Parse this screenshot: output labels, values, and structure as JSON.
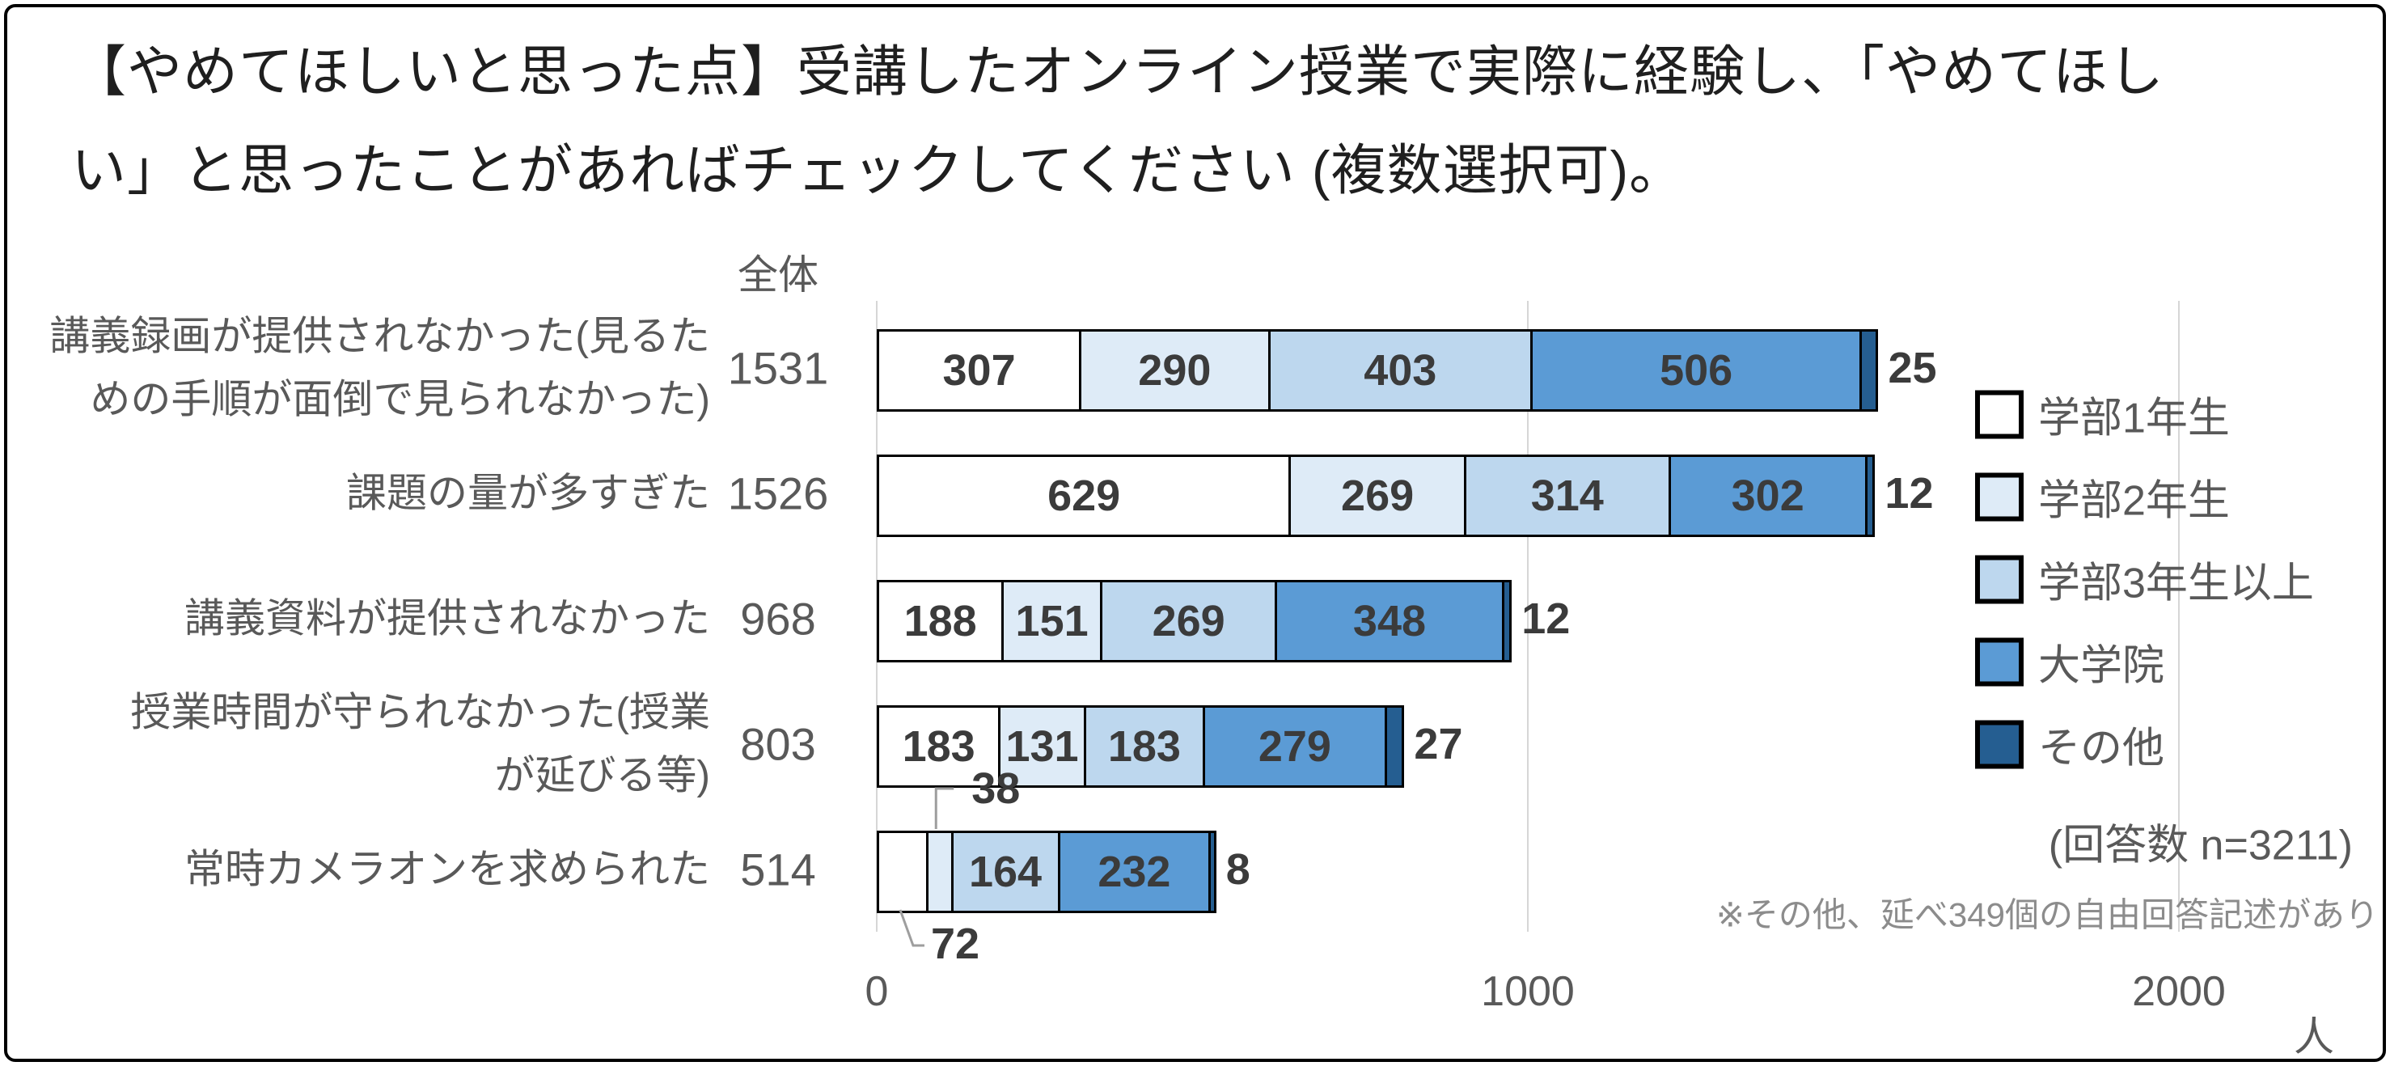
{
  "title": "【やめてほしいと思った点】受講したオンライン授業で実際に経験し、「やめてほしい」と思ったことがあればチェックしてください (複数選択可)。",
  "chart_data": {
    "type": "bar",
    "orientation": "horizontal",
    "stacked": true,
    "total_column_header": "全体",
    "categories": [
      "講義録画が提供されなかった(見るた\nめの手順が面倒で見られなかった)",
      "課題の量が多すぎた",
      "講義資料が提供されなかった",
      "授業時間が守られなかった(授業\nが延びる等)",
      "常時カメラオンを求められた"
    ],
    "totals": [
      1531,
      1526,
      968,
      803,
      514
    ],
    "series": [
      {
        "name": "学部1年生",
        "color": "#ffffff",
        "values": [
          307,
          629,
          188,
          183,
          72
        ]
      },
      {
        "name": "学部2年生",
        "color": "#deebf7",
        "values": [
          290,
          269,
          151,
          131,
          38
        ]
      },
      {
        "name": "学部3年生以上",
        "color": "#bdd7ee",
        "values": [
          403,
          314,
          269,
          183,
          164
        ]
      },
      {
        "name": "大学院",
        "color": "#5b9bd5",
        "values": [
          506,
          302,
          348,
          279,
          232
        ]
      },
      {
        "name": "その他",
        "color": "#255e91",
        "values": [
          25,
          12,
          12,
          27,
          8
        ]
      }
    ],
    "x_axis": {
      "ticks": [
        0,
        1000,
        2000
      ],
      "unit": "人",
      "max": 2230
    },
    "legend_position": "right",
    "gridlines": true,
    "annotations": {
      "respondents": "(回答数 n=3211)",
      "footnote": "※その他、延べ349個の自由回答記述があり"
    },
    "colors": {
      "bar_border": "#000000",
      "gridline": "#d6d6d6",
      "axis_text": "#595959",
      "data_label": "#3b3b3b"
    }
  }
}
